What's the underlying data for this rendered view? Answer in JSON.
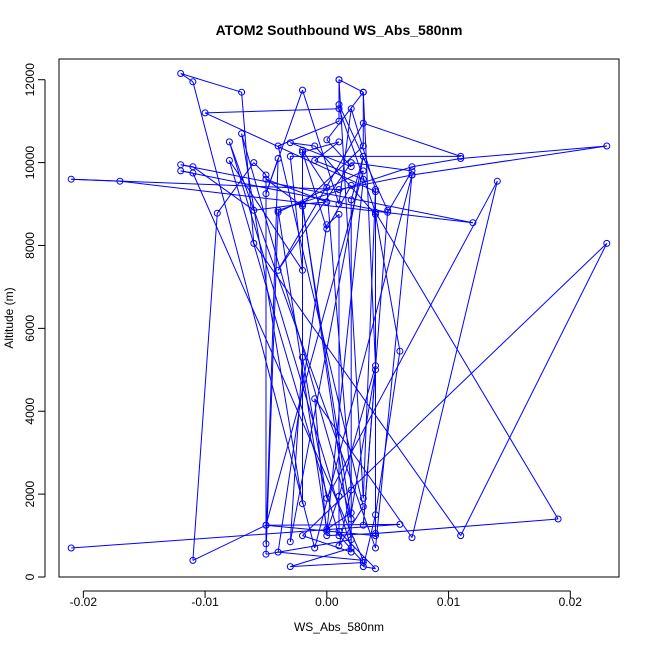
{
  "chart_data": {
    "type": "scatter",
    "connected": true,
    "title": "ATOM2 Southbound WS_Abs_580nm",
    "xlabel": "WS_Abs_580nm",
    "ylabel": "Altitude (m)",
    "xlim": [
      -0.022,
      0.024
    ],
    "ylim": [
      0,
      12500
    ],
    "x_ticks": [
      -0.02,
      -0.01,
      0.0,
      0.01,
      0.02
    ],
    "x_tick_labels": [
      "-0.02",
      "-0.01",
      "0.00",
      "0.01",
      "0.02"
    ],
    "y_ticks": [
      0,
      2000,
      4000,
      6000,
      8000,
      10000,
      12000
    ],
    "y_tick_labels": [
      "0",
      "2000",
      "4000",
      "6000",
      "8000",
      "10000",
      "12000"
    ],
    "grid": false,
    "legend": "none",
    "color": "#0000ff",
    "marker": "open-circle",
    "series": [
      {
        "points": [
          [
            -0.021,
            700
          ],
          [
            0.006,
            1270
          ],
          [
            -0.005,
            1250
          ],
          [
            -0.011,
            400
          ],
          [
            -0.009,
            8780
          ],
          [
            -0.006,
            10000
          ],
          [
            -0.005,
            9700
          ],
          [
            -0.005,
            800
          ],
          [
            -0.004,
            10100
          ],
          [
            -0.005,
            9250
          ],
          [
            -0.002,
            11750
          ],
          [
            0.001,
            9000
          ],
          [
            0.002,
            11300
          ],
          [
            0.004,
            9350
          ],
          [
            0.003,
            1900
          ],
          [
            0.001,
            12000
          ],
          [
            0.003,
            11700
          ],
          [
            0.0,
            10550
          ],
          [
            0.002,
            9900
          ],
          [
            -0.003,
            10480
          ],
          [
            -0.001,
            10400
          ],
          [
            0.004,
            8750
          ],
          [
            0.006,
            5450
          ],
          [
            0.004,
            1500
          ],
          [
            0.003,
            250
          ],
          [
            0.004,
            200
          ],
          [
            0.001,
            1100
          ],
          [
            0.001,
            1950
          ],
          [
            0.004,
            5100
          ],
          [
            0.003,
            11700
          ],
          [
            0.003,
            10400
          ],
          [
            -0.002,
            9000
          ],
          [
            0.0,
            9050
          ],
          [
            -0.005,
            9600
          ],
          [
            -0.002,
            8950
          ],
          [
            0.002,
            1400
          ],
          [
            -0.007,
            10700
          ],
          [
            -0.002,
            1770
          ],
          [
            -0.002,
            10300
          ],
          [
            0.0,
            9400
          ],
          [
            0.002,
            2100
          ],
          [
            0.001,
            750
          ],
          [
            0.003,
            1700
          ],
          [
            -0.004,
            10400
          ],
          [
            0.001,
            11000
          ],
          [
            0.001,
            12000
          ],
          [
            0.001,
            11400
          ],
          [
            0.005,
            8850
          ],
          [
            0.003,
            1250
          ],
          [
            0.004,
            5000
          ],
          [
            0.002,
            1550
          ],
          [
            0.0,
            1150
          ],
          [
            -0.004,
            8850
          ],
          [
            0.007,
            9900
          ],
          [
            0.011,
            10100
          ],
          [
            0.023,
            10400
          ],
          [
            0.007,
            9700
          ],
          [
            0.001,
            9350
          ],
          [
            -0.021,
            9600
          ],
          [
            -0.017,
            9550
          ],
          [
            0.012,
            8550
          ],
          [
            -0.012,
            9950
          ],
          [
            -0.011,
            9900
          ],
          [
            -0.006,
            8850
          ],
          [
            -0.002,
            9000
          ],
          [
            0.002,
            900
          ],
          [
            -0.005,
            550
          ],
          [
            -0.004,
            8800
          ],
          [
            0.003,
            9800
          ],
          [
            -0.005,
            1250
          ],
          [
            0.004,
            1000
          ],
          [
            0.004,
            9300
          ],
          [
            -0.01,
            11200
          ],
          [
            0.001,
            11300
          ],
          [
            0.004,
            8800
          ],
          [
            0.019,
            1400
          ],
          [
            0.004,
            1050
          ],
          [
            0.0,
            1000
          ],
          [
            -0.001,
            4300
          ],
          [
            0.007,
            950
          ],
          [
            0.014,
            9550
          ],
          [
            0.0,
            1900
          ],
          [
            -0.002,
            5300
          ],
          [
            -0.003,
            850
          ],
          [
            0.003,
            10150
          ],
          [
            0.002,
            9100
          ],
          [
            0.002,
            600
          ],
          [
            -0.002,
            1000
          ],
          [
            0.023,
            8050
          ],
          [
            0.011,
            1000
          ],
          [
            -0.006,
            8050
          ],
          [
            -0.007,
            11700
          ],
          [
            -0.012,
            12150
          ],
          [
            -0.011,
            11950
          ],
          [
            -0.001,
            700
          ],
          [
            0.007,
            9700
          ],
          [
            0.004,
            700
          ],
          [
            -0.008,
            10500
          ],
          [
            0.002,
            700
          ],
          [
            -0.003,
            250
          ],
          [
            0.003,
            350
          ],
          [
            0.001,
            1000
          ],
          [
            -0.008,
            10050
          ],
          [
            -0.002,
            7400
          ],
          [
            -0.003,
            10150
          ],
          [
            0.011,
            10150
          ],
          [
            0.003,
            10950
          ],
          [
            -0.004,
            7400
          ],
          [
            0.002,
            10000
          ],
          [
            0.007,
            9800
          ],
          [
            0.005,
            8800
          ],
          [
            -0.012,
            9800
          ],
          [
            -0.011,
            9750
          ],
          [
            0.003,
            400
          ],
          [
            -0.004,
            600
          ],
          [
            0.0,
            8500
          ],
          [
            0.001,
            8750
          ],
          [
            0.001,
            1950
          ],
          [
            0.0,
            1100
          ],
          [
            0.003,
            9600
          ],
          [
            -0.001,
            10050
          ],
          [
            0.001,
            10500
          ],
          [
            -0.002,
            10250
          ],
          [
            0.0,
            8400
          ],
          [
            0.002,
            9450
          ]
        ]
      }
    ]
  }
}
